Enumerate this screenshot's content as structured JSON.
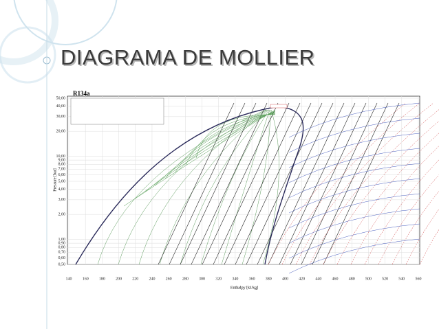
{
  "slide": {
    "title": "DIAGRAMA DE MOLLIER"
  },
  "figure": {
    "refrigerant": "R134a",
    "y_axis_label": "Pressure [bar]",
    "x_axis_label": "Enthalpy [kJ/kg]",
    "xticks": [
      140,
      160,
      180,
      200,
      220,
      240,
      260,
      280,
      300,
      320,
      340,
      360,
      380,
      400,
      420,
      440,
      460,
      480,
      500,
      520,
      540,
      560
    ],
    "yticks": [
      {
        "value": 50,
        "label": "50,00"
      },
      {
        "value": 40,
        "label": "40,00"
      },
      {
        "value": 30,
        "label": "30,00"
      },
      {
        "value": 20,
        "label": "20,00"
      },
      {
        "value": 10,
        "label": "10,00"
      },
      {
        "value": 9,
        "label": "9,00"
      },
      {
        "value": 8,
        "label": "8,00"
      },
      {
        "value": 7,
        "label": "7,00"
      },
      {
        "value": 6,
        "label": "6,00"
      },
      {
        "value": 5,
        "label": "5,00"
      },
      {
        "value": 4,
        "label": "4,00"
      },
      {
        "value": 3,
        "label": "3,00"
      },
      {
        "value": 2,
        "label": "2,00"
      },
      {
        "value": 1,
        "label": "1,00"
      },
      {
        "value": 0.9,
        "label": "0,90"
      },
      {
        "value": 0.8,
        "label": "0,80"
      },
      {
        "value": 0.7,
        "label": "0,70"
      },
      {
        "value": 0.6,
        "label": "0,60"
      },
      {
        "value": 0.5,
        "label": "0,50"
      }
    ]
  }
}
